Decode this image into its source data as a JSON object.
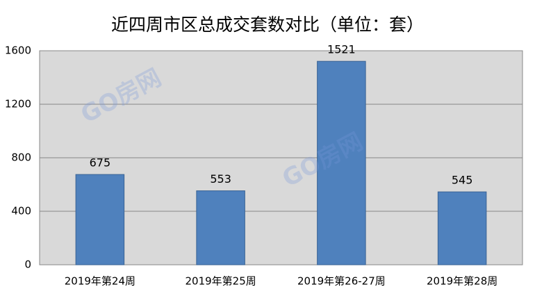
{
  "chart_data": {
    "type": "bar",
    "title": "近四周市区总成交套数对比（单位：套）",
    "categories": [
      "2019年第24周",
      "2019年第25周",
      "2019年第26-27周",
      "2019年第28周"
    ],
    "values": [
      675,
      553,
      1521,
      545
    ],
    "color": "#4f81bd",
    "ylim": [
      0,
      1600
    ],
    "yticks": [
      0,
      400,
      800,
      1200,
      1600
    ],
    "grid": true,
    "watermark": "GO房网"
  }
}
